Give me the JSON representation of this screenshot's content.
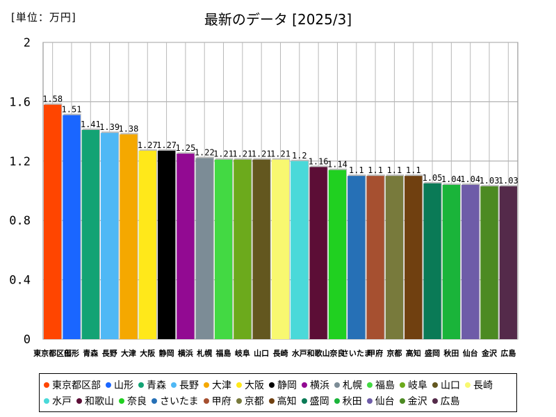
{
  "unit_label": "[単位：万円]",
  "title": "最新のデータ [2025/3]",
  "chart_data": {
    "type": "bar",
    "title": "最新のデータ [2025/3]",
    "ylabel": "[単位：万円]",
    "xlabel": "",
    "ylim": [
      0,
      2
    ],
    "yticks": [
      "0",
      "0.4",
      "0.8",
      "1.2",
      "1.6",
      "2"
    ],
    "grid": true,
    "legend_position": "bottom",
    "categories": [
      "東京都区部",
      "山形",
      "青森",
      "長野",
      "大津",
      "大阪",
      "静岡",
      "横浜",
      "札幌",
      "福島",
      "岐阜",
      "山口",
      "長崎",
      "水戸",
      "和歌山",
      "奈良",
      "さいたま",
      "甲府",
      "京都",
      "高知",
      "盛岡",
      "秋田",
      "仙台",
      "金沢",
      "広島"
    ],
    "values": [
      1.58,
      1.51,
      1.41,
      1.39,
      1.38,
      1.27,
      1.27,
      1.25,
      1.22,
      1.21,
      1.21,
      1.21,
      1.21,
      1.2,
      1.16,
      1.14,
      1.1,
      1.1,
      1.1,
      1.1,
      1.05,
      1.04,
      1.04,
      1.03,
      1.03
    ],
    "value_labels": [
      "1.58",
      "1.51",
      "1.41",
      "1.39",
      "1.38",
      "1.27",
      "1.27",
      "1.25",
      "1.22",
      "1.21",
      "1.21",
      "1.21",
      "1.21",
      "1.2",
      "1.16",
      "1.14",
      "1.1",
      "1.1",
      "1.1",
      "1.1",
      "1.05",
      "1.04",
      "1.04",
      "1.03",
      "1.03"
    ],
    "colors": [
      "#ff4500",
      "#1a66ff",
      "#13a374",
      "#4fb8f5",
      "#f5a800",
      "#ffe81a",
      "#000000",
      "#920a92",
      "#7c8c96",
      "#43d943",
      "#6caa1c",
      "#63571f",
      "#f8f870",
      "#4ad9d9",
      "#5c0e36",
      "#20d020",
      "#2670b6",
      "#a65030",
      "#787a3c",
      "#704010",
      "#0a7a56",
      "#1ab43a",
      "#6e5ca8",
      "#4c8a22",
      "#542a4a"
    ]
  }
}
